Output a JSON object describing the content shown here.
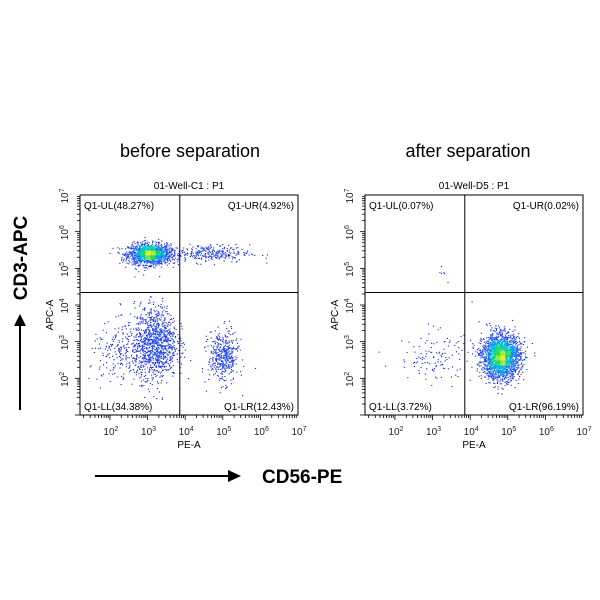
{
  "titles": {
    "left": "before separation",
    "right": "after separation"
  },
  "axis_titles": {
    "y": "CD3-APC",
    "x": "CD56-PE"
  },
  "chart_data": [
    {
      "type": "scatter",
      "title": "01-Well-C1 : P1",
      "xlabel": "PE-A",
      "ylabel": "APC-A",
      "xscale": "log",
      "yscale": "log",
      "xlim": [
        16,
        10000000
      ],
      "ylim": [
        10,
        10000000
      ],
      "xticks": [
        "10^2",
        "10^3",
        "10^4",
        "10^5",
        "10^6",
        "10^7"
      ],
      "yticks": [
        "10^2",
        "10^3",
        "10^4",
        "10^5",
        "10^6",
        "10^7"
      ],
      "quadrant_gate": {
        "x": 7200,
        "y": 22000
      },
      "quadrants": [
        {
          "label": "Q1-UL(48.27%)",
          "name": "Q1-UL",
          "percent": 48.27
        },
        {
          "label": "Q1-UR(4.92%)",
          "name": "Q1-UR",
          "percent": 4.92
        },
        {
          "label": "Q1-LL(34.38%)",
          "name": "Q1-LL",
          "percent": 34.38
        },
        {
          "label": "Q1-LR(12.43%)",
          "name": "Q1-LR",
          "percent": 12.43
        }
      ],
      "populations": [
        {
          "center": [
            1100,
            250000
          ],
          "spread_decades": [
            0.28,
            0.14
          ],
          "events": 1500
        },
        {
          "center": [
            40000,
            260000
          ],
          "spread_decades": [
            0.55,
            0.12
          ],
          "events": 300
        },
        {
          "center": [
            1600,
            1000
          ],
          "spread_decades": [
            0.28,
            0.5
          ],
          "events": 1000
        },
        {
          "center": [
            300,
            500
          ],
          "spread_decades": [
            0.5,
            0.4
          ],
          "events": 300
        },
        {
          "center": [
            100000,
            400
          ],
          "spread_decades": [
            0.2,
            0.35
          ],
          "events": 420
        }
      ]
    },
    {
      "type": "scatter",
      "title": "01-Well-D5 : P1",
      "xlabel": "PE-A",
      "ylabel": "APC-A",
      "xscale": "log",
      "yscale": "log",
      "xlim": [
        16,
        10000000
      ],
      "ylim": [
        10,
        10000000
      ],
      "xticks": [
        "10^2",
        "10^3",
        "10^4",
        "10^5",
        "10^6",
        "10^7"
      ],
      "yticks": [
        "10^2",
        "10^3",
        "10^4",
        "10^5",
        "10^6",
        "10^7"
      ],
      "quadrant_gate": {
        "x": 7200,
        "y": 22000
      },
      "quadrants": [
        {
          "label": "Q1-UL(0.07%)",
          "name": "Q1-UL",
          "percent": 0.07
        },
        {
          "label": "Q1-UR(0.02%)",
          "name": "Q1-UR",
          "percent": 0.02
        },
        {
          "label": "Q1-LL(3.72%)",
          "name": "Q1-LL",
          "percent": 3.72
        },
        {
          "label": "Q1-LR(96.19%)",
          "name": "Q1-LR",
          "percent": 96.19
        }
      ],
      "populations": [
        {
          "center": [
            65000,
            400
          ],
          "spread_decades": [
            0.25,
            0.3
          ],
          "events": 2300
        },
        {
          "center": [
            1200,
            400
          ],
          "spread_decades": [
            0.5,
            0.35
          ],
          "events": 120
        },
        {
          "center": [
            1500,
            100000
          ],
          "spread_decades": [
            0.15,
            0.15
          ],
          "events": 6
        }
      ]
    }
  ]
}
